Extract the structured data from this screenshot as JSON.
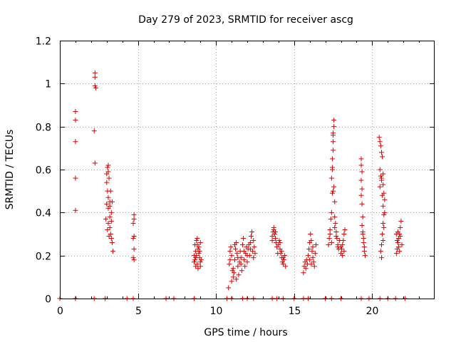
{
  "chart_data": {
    "type": "scatter",
    "title": "Day 279 of 2023, SRMTID for receiver ascg",
    "xlabel": "GPS time / hours",
    "ylabel": "SRMTID / TECUs",
    "xlim": [
      0,
      24
    ],
    "ylim": [
      0,
      1.2
    ],
    "xticks": [
      0,
      5,
      10,
      15,
      20
    ],
    "xtick_labels": [
      "0",
      "5",
      "10",
      "15",
      "20"
    ],
    "yticks": [
      0,
      0.2,
      0.4,
      0.6,
      0.8,
      1.0,
      1.2
    ],
    "ytick_labels": [
      "0",
      "0.2",
      "0.4",
      "0.6",
      "0.8",
      "1",
      "1.2"
    ],
    "grid": true,
    "marker": "+",
    "color": "#dd0000",
    "series": [
      {
        "name": "SRMTID",
        "points": [
          [
            0.0,
            0.0
          ],
          [
            1.0,
            0.0
          ],
          [
            2.2,
            0.0
          ],
          [
            2.9,
            0.0
          ],
          [
            4.3,
            0.0
          ],
          [
            4.7,
            0.0
          ],
          [
            6.8,
            0.0
          ],
          [
            7.3,
            0.0
          ],
          [
            8.6,
            0.0
          ],
          [
            10.7,
            0.0
          ],
          [
            11.0,
            0.0
          ],
          [
            11.7,
            0.0
          ],
          [
            12.0,
            0.0
          ],
          [
            12.4,
            0.0
          ],
          [
            13.6,
            0.0
          ],
          [
            13.9,
            0.0
          ],
          [
            14.3,
            0.0
          ],
          [
            15.0,
            0.0
          ],
          [
            15.6,
            0.0
          ],
          [
            15.9,
            0.0
          ],
          [
            17.0,
            0.0
          ],
          [
            17.4,
            0.0
          ],
          [
            18.0,
            0.0
          ],
          [
            19.3,
            0.0
          ],
          [
            19.8,
            0.0
          ],
          [
            20.5,
            0.0
          ],
          [
            21.0,
            0.0
          ],
          [
            21.5,
            0.0
          ],
          [
            22.1,
            0.0
          ],
          [
            1.0,
            0.87
          ],
          [
            1.0,
            0.83
          ],
          [
            1.0,
            0.73
          ],
          [
            1.0,
            0.56
          ],
          [
            1.0,
            0.41
          ],
          [
            2.25,
            1.05
          ],
          [
            2.25,
            1.03
          ],
          [
            2.25,
            0.99
          ],
          [
            2.3,
            0.98
          ],
          [
            2.2,
            0.78
          ],
          [
            2.25,
            0.63
          ],
          [
            3.0,
            0.58
          ],
          [
            3.05,
            0.61
          ],
          [
            3.1,
            0.62
          ],
          [
            3.1,
            0.59
          ],
          [
            3.0,
            0.54
          ],
          [
            3.15,
            0.56
          ],
          [
            3.05,
            0.5
          ],
          [
            3.1,
            0.47
          ],
          [
            3.2,
            0.45
          ],
          [
            3.25,
            0.5
          ],
          [
            3.0,
            0.44
          ],
          [
            3.1,
            0.42
          ],
          [
            3.2,
            0.38
          ],
          [
            3.3,
            0.4
          ],
          [
            2.95,
            0.37
          ],
          [
            3.1,
            0.35
          ],
          [
            3.2,
            0.33
          ],
          [
            3.25,
            0.3
          ],
          [
            3.3,
            0.28
          ],
          [
            3.15,
            0.29
          ],
          [
            3.35,
            0.26
          ],
          [
            3.05,
            0.32
          ],
          [
            3.4,
            0.22
          ],
          [
            3.3,
            0.36
          ],
          [
            3.2,
            0.43
          ],
          [
            3.35,
            0.45
          ],
          [
            4.75,
            0.39
          ],
          [
            4.75,
            0.37
          ],
          [
            4.7,
            0.35
          ],
          [
            4.75,
            0.29
          ],
          [
            4.7,
            0.28
          ],
          [
            4.75,
            0.23
          ],
          [
            4.7,
            0.19
          ],
          [
            4.75,
            0.18
          ],
          [
            8.6,
            0.2
          ],
          [
            8.65,
            0.18
          ],
          [
            8.7,
            0.22
          ],
          [
            8.75,
            0.27
          ],
          [
            8.8,
            0.25
          ],
          [
            8.85,
            0.23
          ],
          [
            8.9,
            0.21
          ],
          [
            8.95,
            0.19
          ],
          [
            9.0,
            0.17
          ],
          [
            8.7,
            0.15
          ],
          [
            8.8,
            0.16
          ],
          [
            8.9,
            0.24
          ],
          [
            9.0,
            0.26
          ],
          [
            8.6,
            0.17
          ],
          [
            8.85,
            0.14
          ],
          [
            8.95,
            0.22
          ],
          [
            8.75,
            0.2
          ],
          [
            9.05,
            0.18
          ],
          [
            8.65,
            0.25
          ],
          [
            8.8,
            0.28
          ],
          [
            9.0,
            0.15
          ],
          [
            8.7,
            0.19
          ],
          [
            10.8,
            0.05
          ],
          [
            10.85,
            0.16
          ],
          [
            10.9,
            0.22
          ],
          [
            10.95,
            0.24
          ],
          [
            11.0,
            0.2
          ],
          [
            11.05,
            0.13
          ],
          [
            11.1,
            0.1
          ],
          [
            11.15,
            0.12
          ],
          [
            11.2,
            0.18
          ],
          [
            11.25,
            0.23
          ],
          [
            11.3,
            0.26
          ],
          [
            11.35,
            0.21
          ],
          [
            11.4,
            0.15
          ],
          [
            11.45,
            0.11
          ],
          [
            11.5,
            0.17
          ],
          [
            11.55,
            0.22
          ],
          [
            11.6,
            0.19
          ],
          [
            11.65,
            0.13
          ],
          [
            11.7,
            0.25
          ],
          [
            11.75,
            0.28
          ],
          [
            11.8,
            0.18
          ],
          [
            11.85,
            0.15
          ],
          [
            11.9,
            0.21
          ],
          [
            11.95,
            0.24
          ],
          [
            12.0,
            0.2
          ],
          [
            12.05,
            0.23
          ],
          [
            12.1,
            0.25
          ],
          [
            12.15,
            0.2
          ],
          [
            12.2,
            0.26
          ],
          [
            12.25,
            0.29
          ],
          [
            12.3,
            0.31
          ],
          [
            12.35,
            0.22
          ],
          [
            12.4,
            0.19
          ],
          [
            12.45,
            0.24
          ],
          [
            12.5,
            0.21
          ],
          [
            10.9,
            0.18
          ],
          [
            11.0,
            0.08
          ],
          [
            11.1,
            0.14
          ],
          [
            11.2,
            0.25
          ],
          [
            11.3,
            0.09
          ],
          [
            11.4,
            0.19
          ],
          [
            11.6,
            0.16
          ],
          [
            11.8,
            0.22
          ],
          [
            12.0,
            0.17
          ],
          [
            12.2,
            0.23
          ],
          [
            12.4,
            0.27
          ],
          [
            13.6,
            0.29
          ],
          [
            13.65,
            0.31
          ],
          [
            13.7,
            0.33
          ],
          [
            13.75,
            0.3
          ],
          [
            13.8,
            0.28
          ],
          [
            13.85,
            0.26
          ],
          [
            13.9,
            0.24
          ],
          [
            13.7,
            0.32
          ],
          [
            13.8,
            0.31
          ],
          [
            13.6,
            0.27
          ],
          [
            14.0,
            0.25
          ],
          [
            14.05,
            0.27
          ],
          [
            14.1,
            0.23
          ],
          [
            14.15,
            0.21
          ],
          [
            14.2,
            0.19
          ],
          [
            14.25,
            0.17
          ],
          [
            14.3,
            0.16
          ],
          [
            14.35,
            0.18
          ],
          [
            14.4,
            0.2
          ],
          [
            14.45,
            0.15
          ],
          [
            14.1,
            0.26
          ],
          [
            14.2,
            0.22
          ],
          [
            14.3,
            0.19
          ],
          [
            13.95,
            0.21
          ],
          [
            15.6,
            0.12
          ],
          [
            15.65,
            0.15
          ],
          [
            15.7,
            0.17
          ],
          [
            15.75,
            0.14
          ],
          [
            15.8,
            0.18
          ],
          [
            15.85,
            0.16
          ],
          [
            15.9,
            0.2
          ],
          [
            15.95,
            0.23
          ],
          [
            16.0,
            0.26
          ],
          [
            16.05,
            0.3
          ],
          [
            16.1,
            0.27
          ],
          [
            16.15,
            0.22
          ],
          [
            16.2,
            0.19
          ],
          [
            16.25,
            0.17
          ],
          [
            16.3,
            0.15
          ],
          [
            16.35,
            0.21
          ],
          [
            16.4,
            0.25
          ],
          [
            16.0,
            0.18
          ],
          [
            16.1,
            0.16
          ],
          [
            16.2,
            0.24
          ],
          [
            17.2,
            0.25
          ],
          [
            17.25,
            0.28
          ],
          [
            17.3,
            0.32
          ],
          [
            17.35,
            0.37
          ],
          [
            17.4,
            0.4
          ],
          [
            17.4,
            0.56
          ],
          [
            17.45,
            0.6
          ],
          [
            17.45,
            0.65
          ],
          [
            17.5,
            0.69
          ],
          [
            17.5,
            0.73
          ],
          [
            17.5,
            0.77
          ],
          [
            17.55,
            0.8
          ],
          [
            17.55,
            0.83
          ],
          [
            17.5,
            0.76
          ],
          [
            17.45,
            0.61
          ],
          [
            17.5,
            0.5
          ],
          [
            17.45,
            0.49
          ],
          [
            17.55,
            0.52
          ],
          [
            17.6,
            0.45
          ],
          [
            17.6,
            0.38
          ],
          [
            17.65,
            0.35
          ],
          [
            17.7,
            0.31
          ],
          [
            17.75,
            0.28
          ],
          [
            17.8,
            0.25
          ],
          [
            17.85,
            0.23
          ],
          [
            17.9,
            0.27
          ],
          [
            17.3,
            0.3
          ],
          [
            17.4,
            0.26
          ],
          [
            17.6,
            0.33
          ],
          [
            17.7,
            0.29
          ],
          [
            17.8,
            0.24
          ],
          [
            18.0,
            0.21
          ],
          [
            18.05,
            0.23
          ],
          [
            18.1,
            0.25
          ],
          [
            18.15,
            0.27
          ],
          [
            18.2,
            0.3
          ],
          [
            18.25,
            0.32
          ],
          [
            18.1,
            0.2
          ],
          [
            18.2,
            0.22
          ],
          [
            18.0,
            0.24
          ],
          [
            19.3,
            0.65
          ],
          [
            19.3,
            0.62
          ],
          [
            19.35,
            0.59
          ],
          [
            19.3,
            0.55
          ],
          [
            19.35,
            0.51
          ],
          [
            19.3,
            0.48
          ],
          [
            19.35,
            0.44
          ],
          [
            19.4,
            0.38
          ],
          [
            19.35,
            0.34
          ],
          [
            19.4,
            0.31
          ],
          [
            19.45,
            0.28
          ],
          [
            19.45,
            0.26
          ],
          [
            19.5,
            0.24
          ],
          [
            19.5,
            0.22
          ],
          [
            19.55,
            0.2
          ],
          [
            19.4,
            0.3
          ],
          [
            20.45,
            0.75
          ],
          [
            20.5,
            0.73
          ],
          [
            20.55,
            0.71
          ],
          [
            20.6,
            0.68
          ],
          [
            20.65,
            0.66
          ],
          [
            20.5,
            0.6
          ],
          [
            20.55,
            0.57
          ],
          [
            20.6,
            0.55
          ],
          [
            20.7,
            0.53
          ],
          [
            20.75,
            0.49
          ],
          [
            20.8,
            0.46
          ],
          [
            20.7,
            0.43
          ],
          [
            20.75,
            0.39
          ],
          [
            20.7,
            0.35
          ],
          [
            20.65,
            0.3
          ],
          [
            20.7,
            0.27
          ],
          [
            20.6,
            0.25
          ],
          [
            20.55,
            0.22
          ],
          [
            20.6,
            0.19
          ],
          [
            20.5,
            0.52
          ],
          [
            20.65,
            0.48
          ],
          [
            20.8,
            0.4
          ],
          [
            20.75,
            0.33
          ],
          [
            20.6,
            0.56
          ],
          [
            20.7,
            0.58
          ],
          [
            21.55,
            0.21
          ],
          [
            21.6,
            0.23
          ],
          [
            21.65,
            0.26
          ],
          [
            21.7,
            0.28
          ],
          [
            21.75,
            0.3
          ],
          [
            21.8,
            0.33
          ],
          [
            21.85,
            0.36
          ],
          [
            21.6,
            0.27
          ],
          [
            21.7,
            0.24
          ],
          [
            21.8,
            0.29
          ],
          [
            21.65,
            0.31
          ],
          [
            21.75,
            0.22
          ],
          [
            21.9,
            0.25
          ],
          [
            21.55,
            0.3
          ]
        ]
      }
    ]
  }
}
